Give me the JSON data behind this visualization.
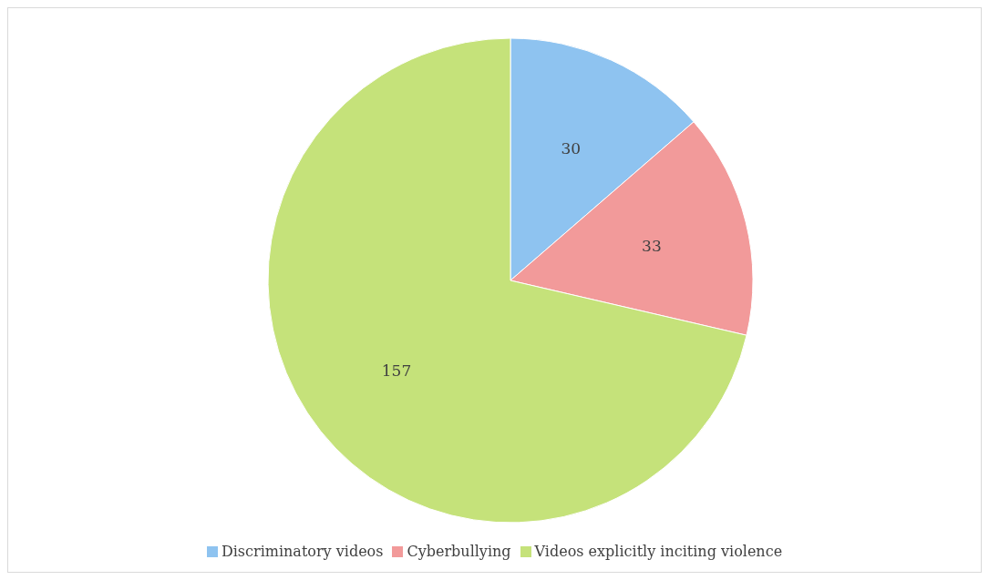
{
  "chart_data": {
    "type": "pie",
    "categories": [
      "Discriminatory videos",
      "Cyberbullying",
      "Videos explicitly inciting violence"
    ],
    "values": [
      30,
      33,
      157
    ],
    "colors": [
      "#8ec3f0",
      "#f29a9a",
      "#c5e27a"
    ],
    "data_labels": true,
    "legend": "bottom"
  }
}
